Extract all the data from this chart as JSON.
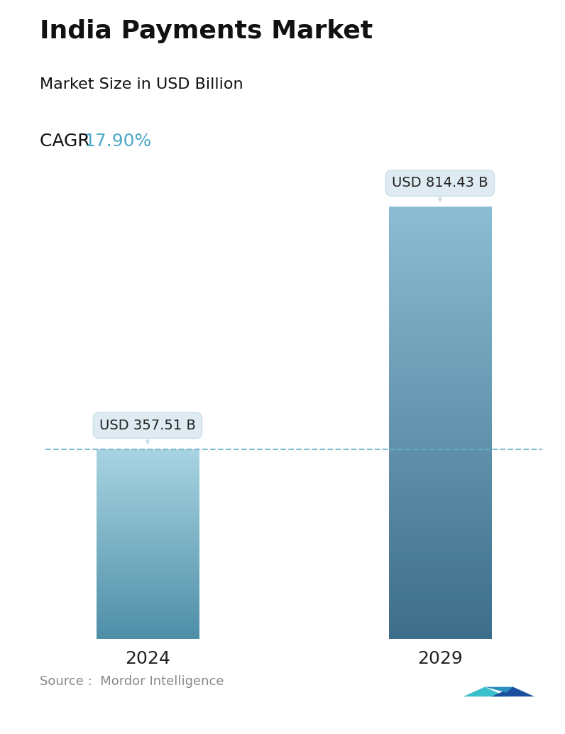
{
  "title": "India Payments Market",
  "subtitle": "Market Size in USD Billion",
  "cagr_label": "CAGR ",
  "cagr_value": "17.90%",
  "cagr_color": "#4daac8",
  "categories": [
    "2024",
    "2029"
  ],
  "values": [
    357.51,
    814.43
  ],
  "bar_labels": [
    "USD 357.51 B",
    "USD 814.43 B"
  ],
  "bar_top_color_1": "#a8d4e2",
  "bar_bottom_color_1": "#4e8fa8",
  "bar_top_color_2": "#8dbdd4",
  "bar_bottom_color_2": "#3d6e8a",
  "dashed_line_color": "#6bafc8",
  "tooltip_bg": "#ddeaf2",
  "tooltip_edge": "#c8dde8",
  "tooltip_text_color": "#222222",
  "source_text": "Source :  Mordor Intelligence",
  "source_color": "#888888",
  "background_color": "#ffffff",
  "title_fontsize": 26,
  "subtitle_fontsize": 16,
  "cagr_fontsize": 18,
  "bar_label_fontsize": 14,
  "xtick_fontsize": 18,
  "source_fontsize": 13,
  "ylim_max": 900,
  "bar_width": 0.35,
  "x_positions": [
    0,
    1
  ],
  "xlim": [
    -0.35,
    1.35
  ]
}
